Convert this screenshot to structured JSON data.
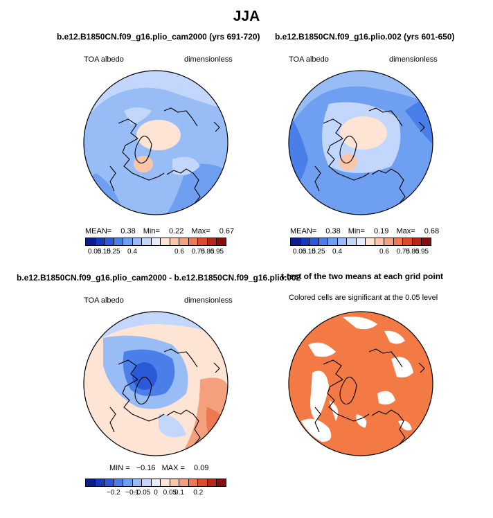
{
  "figure": {
    "title": "JJA"
  },
  "chart_data": [
    {
      "type": "heatmap",
      "title": "b.e12.B1850CN.f09_g16.plio_cam2000 (yrs 691-720)",
      "left_label": "TOA albedo",
      "right_label": "dimensionless",
      "stats": {
        "mean_label": "MEAN=",
        "mean": "0.38",
        "min_label": "Min=",
        "min": "0.22",
        "max_label": "Max=",
        "max": "0.67"
      },
      "colorbar": {
        "ticks": [
          "0.05",
          "0.15",
          "0.25",
          "0.4",
          "0.6",
          "0.75",
          "0.85",
          "0.95"
        ],
        "colors": [
          "#0a1e8c",
          "#1438c0",
          "#2a5ad8",
          "#4a7ee8",
          "#6f9ff0",
          "#98bcf6",
          "#c2d7fb",
          "#e6eefd",
          "#fde4d4",
          "#fbc6a8",
          "#f5a07c",
          "#ee7852",
          "#dc4c2c",
          "#b8261a",
          "#8a0e0e"
        ]
      }
    },
    {
      "type": "heatmap",
      "title": "b.e12.B1850CN.f09_g16.plio.002 (yrs 601-650)",
      "left_label": "TOA albedo",
      "right_label": "dimensionless",
      "stats": {
        "mean_label": "MEAN=",
        "mean": "0.38",
        "min_label": "Min=",
        "min": "0.19",
        "max_label": "Max=",
        "max": "0.68"
      },
      "colorbar": {
        "ticks": [
          "0.05",
          "0.15",
          "0.25",
          "0.4",
          "0.6",
          "0.75",
          "0.85",
          "0.95"
        ],
        "colors": [
          "#0a1e8c",
          "#1438c0",
          "#2a5ad8",
          "#4a7ee8",
          "#6f9ff0",
          "#98bcf6",
          "#c2d7fb",
          "#e6eefd",
          "#fde4d4",
          "#fbc6a8",
          "#f5a07c",
          "#ee7852",
          "#dc4c2c",
          "#b8261a",
          "#8a0e0e"
        ]
      }
    },
    {
      "type": "heatmap",
      "title": "b.e12.B1850CN.f09_g16.plio_cam2000 - b.e12.B1850CN.f09_g16.plio.002",
      "left_label": "TOA albedo",
      "right_label": "dimensionless",
      "stats": {
        "min_label": "MIN =",
        "min": "−0.16",
        "max_label": "MAX =",
        "max": "0.09"
      },
      "colorbar": {
        "ticks": [
          "−0.2",
          "−0.1",
          "−0.05",
          "0",
          "0.05",
          "0.1",
          "0.2"
        ],
        "colors": [
          "#0a1e8c",
          "#1438c0",
          "#2a5ad8",
          "#4a7ee8",
          "#6f9ff0",
          "#98bcf6",
          "#c2d7fb",
          "#e6eefd",
          "#fde4d4",
          "#fbc6a8",
          "#f5a07c",
          "#ee7852",
          "#dc4c2c",
          "#b8261a",
          "#8a0e0e"
        ]
      }
    },
    {
      "type": "heatmap",
      "title": "t-test of the two means at each grid point",
      "subtitle": "Colored cells are significant at the 0.05 level",
      "significance_color": "#f47a45"
    }
  ]
}
